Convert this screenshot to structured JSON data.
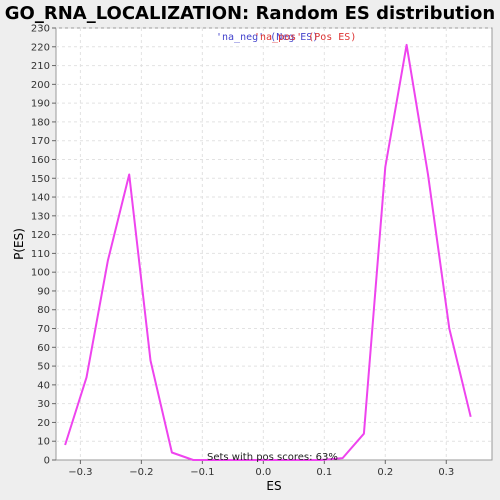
{
  "chart_data": {
    "type": "line",
    "title": "GO_RNA_LOCALIZATION: Random ES distribution",
    "xlabel": "ES",
    "ylabel": "P(ES)",
    "xlim": [
      -0.34,
      0.375
    ],
    "ylim": [
      0,
      230
    ],
    "x_ticks": [
      -0.3,
      -0.2,
      -0.1,
      0.0,
      0.1,
      0.2,
      0.3
    ],
    "x_tick_labels": [
      "−0.3",
      "−0.2",
      "−0.1",
      "0.0",
      "0.1",
      "0.2",
      "0.3"
    ],
    "y_ticks": [
      0,
      10,
      20,
      30,
      40,
      50,
      60,
      70,
      80,
      90,
      100,
      110,
      120,
      130,
      140,
      150,
      160,
      170,
      180,
      190,
      200,
      210,
      220,
      230
    ],
    "grid": true,
    "legend": {
      "placement": "top-center",
      "entries": [
        {
          "label": "'na_neg' (Neg ES)",
          "color": "#4444cc"
        },
        {
          "label": "'na_pos' (Pos ES)",
          "color": "#dd3333"
        }
      ]
    },
    "annotation": "Sets with pos scores: 63%",
    "series": [
      {
        "color": "#ee44ee",
        "x": [
          -0.325,
          -0.29,
          -0.255,
          -0.22,
          -0.185,
          -0.15,
          -0.115,
          -0.08,
          -0.045,
          -0.01,
          0.025,
          0.06,
          0.095,
          0.13,
          0.165,
          0.2,
          0.235,
          0.27,
          0.305,
          0.34
        ],
        "y": [
          8,
          44,
          106,
          152,
          53,
          4,
          0,
          0,
          0,
          0,
          0,
          0,
          0,
          1,
          14,
          156,
          221,
          152,
          70,
          23
        ]
      }
    ]
  }
}
